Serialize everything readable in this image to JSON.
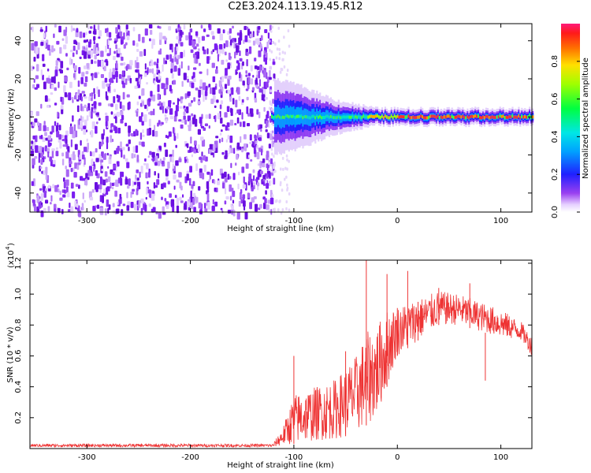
{
  "title": "C2E3.2024.113.19.45.R12",
  "colorbar": {
    "label": "Normalized spectral amplitude",
    "ticks": [
      0.0,
      0.2,
      0.4,
      0.6,
      0.8
    ],
    "tick_labels": [
      "0.0",
      "0.2",
      "0.4",
      "0.6",
      "0.8"
    ],
    "range": [
      0,
      1
    ]
  },
  "chart_data": [
    {
      "type": "heatmap",
      "xlabel": "Height of straight line (km)",
      "ylabel": "Frequency (Hz)",
      "xlim": [
        -355,
        130
      ],
      "ylim": [
        -50,
        49
      ],
      "xticks": [
        -300,
        -200,
        -100,
        0,
        100
      ],
      "xtick_labels": [
        "-300",
        "-200",
        "-100",
        "0",
        "100"
      ],
      "yticks": [
        -40,
        -20,
        0,
        20,
        40
      ],
      "ytick_labels": [
        "-40",
        "-20",
        "0",
        "20",
        "40"
      ],
      "noise_region": {
        "x": [
          -355,
          -120
        ],
        "y": [
          -50,
          49
        ]
      },
      "signal_center_hz": 0,
      "signal_halfwidth": [
        {
          "x": -120,
          "hz": 9
        },
        {
          "x": -100,
          "hz": 8
        },
        {
          "x": -80,
          "hz": 6
        },
        {
          "x": -60,
          "hz": 4
        },
        {
          "x": -40,
          "hz": 3
        },
        {
          "x": -20,
          "hz": 2
        },
        {
          "x": 0,
          "hz": 2
        },
        {
          "x": 50,
          "hz": 2
        },
        {
          "x": 130,
          "hz": 2
        }
      ]
    },
    {
      "type": "line",
      "xlabel": "Height of straight line (km)",
      "ylabel": "SNR (10 * v/v)",
      "ylabel_scale": "(x10^4)",
      "xlim": [
        -355,
        130
      ],
      "ylim": [
        0,
        1.22
      ],
      "xticks": [
        -300,
        -200,
        -100,
        0,
        100
      ],
      "xtick_labels": [
        "-300",
        "-200",
        "-100",
        "0",
        "100"
      ],
      "yticks": [
        0.2,
        0.4,
        0.6,
        0.8,
        1.0,
        1.2
      ],
      "ytick_labels": [
        "0.2",
        "0.4",
        "0.6",
        "0.8",
        "1.0",
        "1.2"
      ],
      "series": [
        {
          "color": "#ee3333",
          "envelope": [
            {
              "x": -355,
              "lo": 0.01,
              "hi": 0.03
            },
            {
              "x": -120,
              "lo": 0.01,
              "hi": 0.03
            },
            {
              "x": -110,
              "lo": 0.02,
              "hi": 0.15
            },
            {
              "x": -100,
              "lo": 0.03,
              "hi": 0.35
            },
            {
              "x": -80,
              "lo": 0.05,
              "hi": 0.4
            },
            {
              "x": -60,
              "lo": 0.06,
              "hi": 0.45
            },
            {
              "x": -40,
              "lo": 0.1,
              "hi": 0.6
            },
            {
              "x": -30,
              "lo": 0.15,
              "hi": 0.75
            },
            {
              "x": -20,
              "lo": 0.2,
              "hi": 0.8
            },
            {
              "x": -10,
              "lo": 0.4,
              "hi": 0.9
            },
            {
              "x": 0,
              "lo": 0.6,
              "hi": 0.92
            },
            {
              "x": 20,
              "lo": 0.7,
              "hi": 0.97
            },
            {
              "x": 40,
              "lo": 0.8,
              "hi": 1.02
            },
            {
              "x": 60,
              "lo": 0.8,
              "hi": 1.0
            },
            {
              "x": 80,
              "lo": 0.76,
              "hi": 0.95
            },
            {
              "x": 100,
              "lo": 0.72,
              "hi": 0.9
            },
            {
              "x": 120,
              "lo": 0.7,
              "hi": 0.82
            },
            {
              "x": 130,
              "lo": 0.6,
              "hi": 0.72
            }
          ],
          "spikes": [
            {
              "x": -30,
              "y": 1.22
            },
            {
              "x": -100,
              "y": 0.6
            },
            {
              "x": -50,
              "y": 0.63
            },
            {
              "x": -10,
              "y": 1.13
            },
            {
              "x": 0,
              "y": 0.91
            },
            {
              "x": 10,
              "y": 1.15
            },
            {
              "x": 20,
              "y": 0.95
            },
            {
              "x": 40,
              "y": 1.04
            },
            {
              "x": 70,
              "y": 1.07
            },
            {
              "x": 85,
              "y": 0.44
            }
          ]
        }
      ]
    }
  ]
}
